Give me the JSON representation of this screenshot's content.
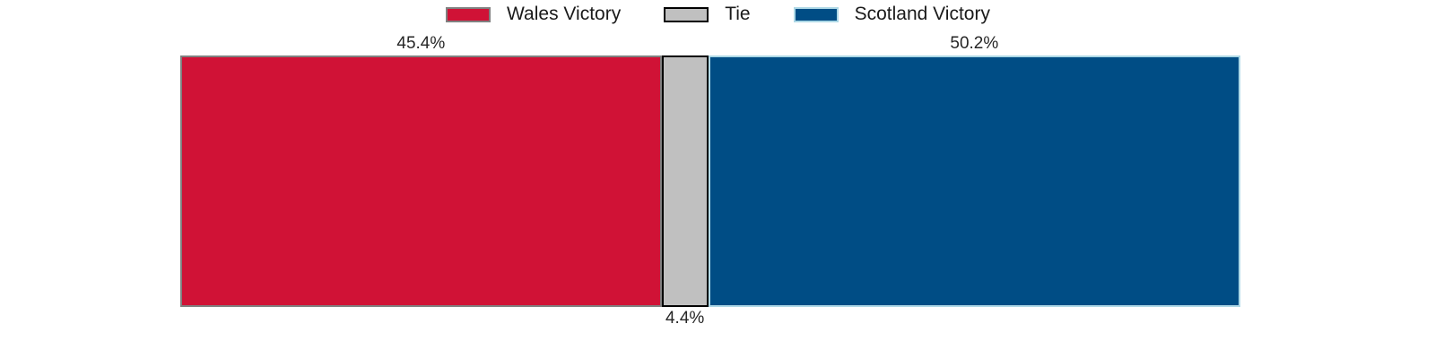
{
  "chart_data": {
    "type": "bar",
    "variant": "horizontal-stacked-percentage",
    "title": "",
    "xlabel": "",
    "ylabel": "",
    "axes_visible": false,
    "grid": false,
    "background_color": "#ffffff",
    "xlim": [
      0,
      100
    ],
    "legend": {
      "position": "top-center",
      "entries": [
        {
          "label": "Wales Victory",
          "swatch_color": "#d01236",
          "swatch_edge_color": "#808080"
        },
        {
          "label": "Tie",
          "swatch_color": "#c0c0c0",
          "swatch_edge_color": "#000000"
        },
        {
          "label": "Scotland Victory",
          "swatch_color": "#004d85",
          "swatch_edge_color": "#add8e6"
        }
      ]
    },
    "series": [
      {
        "name": "Wales Victory",
        "value": 45.4,
        "label": "45.4%",
        "label_position": "above",
        "fill_color": "#d01236",
        "edge_color": "#808080"
      },
      {
        "name": "Tie",
        "value": 4.4,
        "label": "4.4%",
        "label_position": "below",
        "fill_color": "#c0c0c0",
        "edge_color": "#000000"
      },
      {
        "name": "Scotland Victory",
        "value": 50.2,
        "label": "50.2%",
        "label_position": "above",
        "fill_color": "#004d85",
        "edge_color": "#add8e6"
      }
    ],
    "text_color": "#262626"
  }
}
